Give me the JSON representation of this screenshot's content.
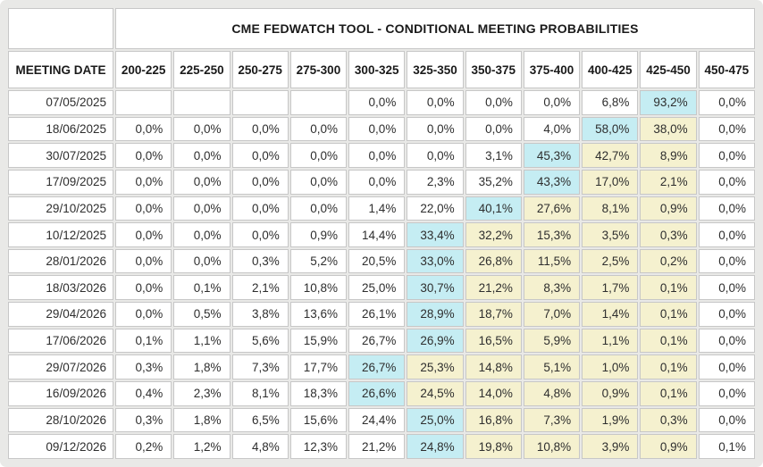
{
  "colors": {
    "frame_background": "#e9e9e7",
    "cell_background": "#ffffff",
    "cell_border": "#c7c7c7",
    "highlight_cyan": "#c5edf3",
    "highlight_yellow": "#f5f1cf",
    "text": "#2e2e2e"
  },
  "chart_data": {
    "type": "table",
    "title": "CME FEDWATCH TOOL - CONDITIONAL MEETING PROBABILITIES",
    "row_header": "MEETING DATE",
    "columns": [
      "200-225",
      "225-250",
      "250-275",
      "275-300",
      "300-325",
      "325-350",
      "350-375",
      "375-400",
      "400-425",
      "425-450",
      "450-475"
    ],
    "highlight_legend": {
      "cyan": "highest probability in row",
      "yellow": "probabilities right of the peak through 425-450"
    },
    "rows": [
      {
        "date": "07/05/2025",
        "values": [
          "",
          "",
          "",
          "",
          "0,0%",
          "0,0%",
          "0,0%",
          "0,0%",
          "6,8%",
          "93,2%",
          "0,0%"
        ],
        "highlights": [
          "",
          "",
          "",
          "",
          "",
          "",
          "",
          "",
          "",
          "cyan",
          ""
        ]
      },
      {
        "date": "18/06/2025",
        "values": [
          "0,0%",
          "0,0%",
          "0,0%",
          "0,0%",
          "0,0%",
          "0,0%",
          "0,0%",
          "4,0%",
          "58,0%",
          "38,0%",
          "0,0%"
        ],
        "highlights": [
          "",
          "",
          "",
          "",
          "",
          "",
          "",
          "",
          "cyan",
          "yellow",
          ""
        ]
      },
      {
        "date": "30/07/2025",
        "values": [
          "0,0%",
          "0,0%",
          "0,0%",
          "0,0%",
          "0,0%",
          "0,0%",
          "3,1%",
          "45,3%",
          "42,7%",
          "8,9%",
          "0,0%"
        ],
        "highlights": [
          "",
          "",
          "",
          "",
          "",
          "",
          "",
          "cyan",
          "yellow",
          "yellow",
          ""
        ]
      },
      {
        "date": "17/09/2025",
        "values": [
          "0,0%",
          "0,0%",
          "0,0%",
          "0,0%",
          "0,0%",
          "2,3%",
          "35,2%",
          "43,3%",
          "17,0%",
          "2,1%",
          "0,0%"
        ],
        "highlights": [
          "",
          "",
          "",
          "",
          "",
          "",
          "",
          "cyan",
          "yellow",
          "yellow",
          ""
        ]
      },
      {
        "date": "29/10/2025",
        "values": [
          "0,0%",
          "0,0%",
          "0,0%",
          "0,0%",
          "1,4%",
          "22,0%",
          "40,1%",
          "27,6%",
          "8,1%",
          "0,9%",
          "0,0%"
        ],
        "highlights": [
          "",
          "",
          "",
          "",
          "",
          "",
          "cyan",
          "yellow",
          "yellow",
          "yellow",
          ""
        ]
      },
      {
        "date": "10/12/2025",
        "values": [
          "0,0%",
          "0,0%",
          "0,0%",
          "0,9%",
          "14,4%",
          "33,4%",
          "32,2%",
          "15,3%",
          "3,5%",
          "0,3%",
          "0,0%"
        ],
        "highlights": [
          "",
          "",
          "",
          "",
          "",
          "cyan",
          "yellow",
          "yellow",
          "yellow",
          "yellow",
          ""
        ]
      },
      {
        "date": "28/01/2026",
        "values": [
          "0,0%",
          "0,0%",
          "0,3%",
          "5,2%",
          "20,5%",
          "33,0%",
          "26,8%",
          "11,5%",
          "2,5%",
          "0,2%",
          "0,0%"
        ],
        "highlights": [
          "",
          "",
          "",
          "",
          "",
          "cyan",
          "yellow",
          "yellow",
          "yellow",
          "yellow",
          ""
        ]
      },
      {
        "date": "18/03/2026",
        "values": [
          "0,0%",
          "0,1%",
          "2,1%",
          "10,8%",
          "25,0%",
          "30,7%",
          "21,2%",
          "8,3%",
          "1,7%",
          "0,1%",
          "0,0%"
        ],
        "highlights": [
          "",
          "",
          "",
          "",
          "",
          "cyan",
          "yellow",
          "yellow",
          "yellow",
          "yellow",
          ""
        ]
      },
      {
        "date": "29/04/2026",
        "values": [
          "0,0%",
          "0,5%",
          "3,8%",
          "13,6%",
          "26,1%",
          "28,9%",
          "18,7%",
          "7,0%",
          "1,4%",
          "0,1%",
          "0,0%"
        ],
        "highlights": [
          "",
          "",
          "",
          "",
          "",
          "cyan",
          "yellow",
          "yellow",
          "yellow",
          "yellow",
          ""
        ]
      },
      {
        "date": "17/06/2026",
        "values": [
          "0,1%",
          "1,1%",
          "5,6%",
          "15,9%",
          "26,7%",
          "26,9%",
          "16,5%",
          "5,9%",
          "1,1%",
          "0,1%",
          "0,0%"
        ],
        "highlights": [
          "",
          "",
          "",
          "",
          "",
          "cyan",
          "yellow",
          "yellow",
          "yellow",
          "yellow",
          ""
        ]
      },
      {
        "date": "29/07/2026",
        "values": [
          "0,3%",
          "1,8%",
          "7,3%",
          "17,7%",
          "26,7%",
          "25,3%",
          "14,8%",
          "5,1%",
          "1,0%",
          "0,1%",
          "0,0%"
        ],
        "highlights": [
          "",
          "",
          "",
          "",
          "cyan",
          "yellow",
          "yellow",
          "yellow",
          "yellow",
          "yellow",
          ""
        ]
      },
      {
        "date": "16/09/2026",
        "values": [
          "0,4%",
          "2,3%",
          "8,1%",
          "18,3%",
          "26,6%",
          "24,5%",
          "14,0%",
          "4,8%",
          "0,9%",
          "0,1%",
          "0,0%"
        ],
        "highlights": [
          "",
          "",
          "",
          "",
          "cyan",
          "yellow",
          "yellow",
          "yellow",
          "yellow",
          "yellow",
          ""
        ]
      },
      {
        "date": "28/10/2026",
        "values": [
          "0,3%",
          "1,8%",
          "6,5%",
          "15,6%",
          "24,4%",
          "25,0%",
          "16,8%",
          "7,3%",
          "1,9%",
          "0,3%",
          "0,0%"
        ],
        "highlights": [
          "",
          "",
          "",
          "",
          "",
          "cyan",
          "yellow",
          "yellow",
          "yellow",
          "yellow",
          ""
        ]
      },
      {
        "date": "09/12/2026",
        "values": [
          "0,2%",
          "1,2%",
          "4,8%",
          "12,3%",
          "21,2%",
          "24,8%",
          "19,8%",
          "10,8%",
          "3,9%",
          "0,9%",
          "0,1%"
        ],
        "highlights": [
          "",
          "",
          "",
          "",
          "",
          "cyan",
          "yellow",
          "yellow",
          "yellow",
          "yellow",
          ""
        ]
      }
    ]
  }
}
